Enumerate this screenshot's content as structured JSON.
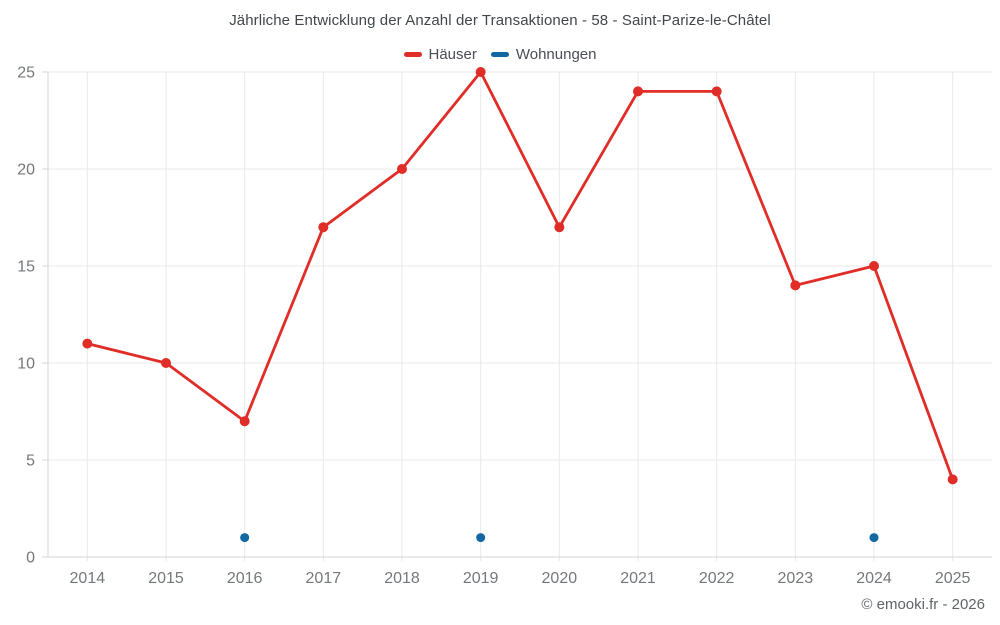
{
  "copyright": "© emooki.fr - 2026",
  "chart_data": {
    "type": "line",
    "title": "Jährliche Entwicklung der Anzahl der Transaktionen - 58 - Saint-Parize-le-Châtel",
    "categories": [
      "2014",
      "2015",
      "2016",
      "2017",
      "2018",
      "2019",
      "2020",
      "2021",
      "2022",
      "2023",
      "2024",
      "2025"
    ],
    "series": [
      {
        "name": "Häuser",
        "type": "line",
        "color": "#e02d27",
        "values": [
          11,
          10,
          7,
          17,
          20,
          25,
          17,
          24,
          24,
          14,
          15,
          4
        ]
      },
      {
        "name": "Wohnungen",
        "type": "scatter",
        "color": "#1269a2",
        "values": [
          null,
          null,
          1,
          null,
          null,
          1,
          null,
          null,
          null,
          null,
          1,
          null
        ]
      }
    ],
    "xlabel": "",
    "ylabel": "",
    "ylim": [
      0,
      25
    ],
    "yticks": [
      0,
      5,
      10,
      15,
      20,
      25
    ],
    "grid": true,
    "legend_position": "top"
  }
}
